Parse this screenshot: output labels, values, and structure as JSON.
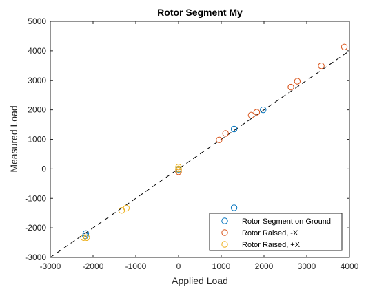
{
  "chart_data": {
    "type": "scatter",
    "title": "Rotor Segment My",
    "xlabel": "Applied Load",
    "ylabel": "Measured Load",
    "xlim": [
      -3000,
      4000
    ],
    "ylim": [
      -3000,
      5000
    ],
    "xticks": [
      -3000,
      -2000,
      -1000,
      0,
      1000,
      2000,
      3000,
      4000
    ],
    "yticks": [
      -3000,
      -2000,
      -1000,
      0,
      1000,
      2000,
      3000,
      4000,
      5000
    ],
    "grid": false,
    "legend_position": "bottom-right",
    "reference_line": {
      "style": "dashed",
      "color": "#000000",
      "slope": 1,
      "intercept": 0
    },
    "series": [
      {
        "name": "Rotor Segment on Ground",
        "color": "#0072BD",
        "marker": "circle-open",
        "points": [
          [
            -2170,
            -2190
          ],
          [
            -2180,
            -2270
          ],
          [
            0,
            -20
          ],
          [
            1300,
            1350
          ],
          [
            1980,
            2000
          ],
          [
            1300,
            -1320
          ]
        ]
      },
      {
        "name": "Rotor Raised, -X",
        "color": "#D95319",
        "marker": "circle-open",
        "points": [
          [
            950,
            980
          ],
          [
            1100,
            1200
          ],
          [
            1700,
            1820
          ],
          [
            1830,
            1920
          ],
          [
            2630,
            2770
          ],
          [
            2780,
            2970
          ],
          [
            3340,
            3490
          ],
          [
            3880,
            4130
          ],
          [
            0,
            -100
          ]
        ]
      },
      {
        "name": "Rotor Raised, +X",
        "color": "#EDB120",
        "marker": "circle-open",
        "points": [
          [
            -2220,
            -2330
          ],
          [
            -2150,
            -2330
          ],
          [
            -1330,
            -1410
          ],
          [
            -1220,
            -1330
          ],
          [
            0,
            60
          ],
          [
            0,
            0
          ],
          [
            0,
            -50
          ]
        ]
      }
    ]
  }
}
